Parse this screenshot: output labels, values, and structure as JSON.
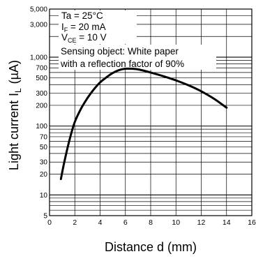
{
  "chart_data": {
    "type": "line",
    "xlabel": "Distance d (mm)",
    "ylabel_main": "Light current",
    "ylabel_symbol": "I",
    "ylabel_sub": "L",
    "ylabel_unit": "(µA)",
    "x_scale": "linear",
    "y_scale": "log",
    "xlim": [
      0,
      16
    ],
    "ylim": [
      5,
      5000
    ],
    "x_ticks": [
      0,
      2,
      4,
      6,
      8,
      10,
      12,
      14,
      16
    ],
    "y_ticks": [
      5,
      10,
      20,
      30,
      50,
      70,
      100,
      200,
      300,
      500,
      700,
      1000,
      3000,
      5000
    ],
    "y_tick_labels": [
      "5",
      "10",
      "20",
      "30",
      "50",
      "70",
      "100",
      "200",
      "300",
      "500",
      "700",
      "1,000",
      "3,000",
      "5,000"
    ],
    "grid": true,
    "conditions": [
      {
        "text": "Ta = 25°C"
      },
      {
        "main": "I",
        "sub": "F",
        "rest": " = 20 mA"
      },
      {
        "main": "V",
        "sub": "CE",
        "rest": " = 10 V"
      }
    ],
    "annotation": [
      "Sensing object: White paper",
      "with a reflection factor of 90%"
    ],
    "series": [
      {
        "x": [
          0.9,
          1.2,
          1.6,
          2.0,
          2.5,
          3.0,
          3.5,
          4.0,
          4.5,
          5.0,
          5.5,
          6.0,
          6.5,
          7.0,
          8.0,
          9.0,
          10.0,
          11.0,
          12.0,
          13.0,
          14.0
        ],
        "y": [
          17,
          32,
          65,
          115,
          180,
          255,
          340,
          430,
          510,
          590,
          650,
          680,
          680,
          665,
          600,
          530,
          460,
          390,
          320,
          250,
          185
        ]
      }
    ]
  }
}
